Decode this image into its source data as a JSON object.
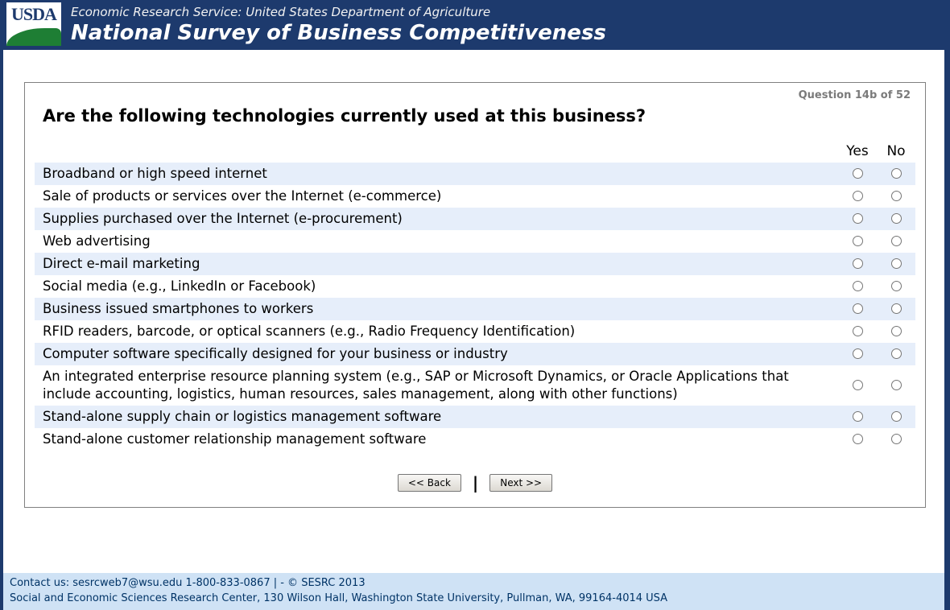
{
  "header": {
    "logo_text": "USDA",
    "agency_line": "Economic Research Service: United States Department of Agriculture",
    "survey_title": "National Survey of Business Competitiveness"
  },
  "question": {
    "progress": "Question 14b of 52",
    "title": "Are the following technologies currently used at this business?",
    "columns": {
      "yes_label": "Yes",
      "no_label": "No"
    },
    "items": [
      {
        "label": "Broadband or high speed internet"
      },
      {
        "label": "Sale of products or services over the Internet (e-commerce)"
      },
      {
        "label": "Supplies purchased over the Internet (e-procurement)"
      },
      {
        "label": "Web advertising"
      },
      {
        "label": "Direct e-mail marketing"
      },
      {
        "label": "Social media (e.g., LinkedIn or Facebook)"
      },
      {
        "label": "Business issued smartphones to workers"
      },
      {
        "label": "RFID readers, barcode, or optical scanners (e.g., Radio Frequency Identification)"
      },
      {
        "label": "Computer software specifically designed for your business or industry"
      },
      {
        "label": "An integrated enterprise resource planning system (e.g., SAP or Microsoft Dynamics, or Oracle Applications that include accounting, logistics, human resources, sales management, along with other functions)"
      },
      {
        "label": "Stand-alone supply chain or logistics management software"
      },
      {
        "label": "Stand-alone customer relationship management software"
      }
    ]
  },
  "buttons": {
    "back_label": "<< Back",
    "divider": "|",
    "next_label": "Next >>"
  },
  "footer": {
    "line1": "Contact us: sesrcweb7@wsu.edu 1-800-833-0867 | - © SESRC 2013",
    "line2": "Social and Economic Sciences Research Center, 130 Wilson Hall, Washington State University, Pullman, WA, 99164-4014 USA"
  },
  "colors": {
    "header_bg": "#1d3a6d",
    "row_highlight": "#e6eefa",
    "footer_bg": "#cfe2f5",
    "footer_text": "#003366",
    "logo_green": "#1e7e34"
  }
}
